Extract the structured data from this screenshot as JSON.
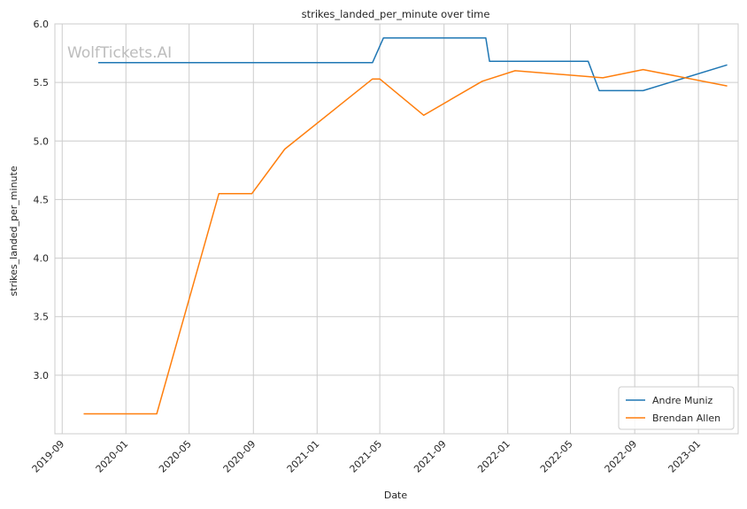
{
  "chart_data": {
    "type": "line",
    "title": "strikes_landed_per_minute over time",
    "xlabel": "Date",
    "ylabel": "strikes_landed_per_minute",
    "watermark": "WolfTickets.AI",
    "x_ticks": [
      "2019-09",
      "2020-01",
      "2020-05",
      "2020-09",
      "2021-01",
      "2021-05",
      "2021-09",
      "2022-01",
      "2022-05",
      "2022-09",
      "2023-01"
    ],
    "y_ticks": [
      "3.0",
      "3.5",
      "4.0",
      "4.5",
      "5.0",
      "5.5",
      "6.0"
    ],
    "ylim": [
      2.5,
      6.0
    ],
    "xlim": [
      "2019-08-18",
      "2023-03-18"
    ],
    "grid": true,
    "legend_position": "bottom-right",
    "colors": {
      "Andre Muniz": "#1f77b4",
      "Brendan Allen": "#ff7f0e",
      "grid": "#cccccc",
      "axes": "#cccccc"
    },
    "series": [
      {
        "name": "Andre Muniz",
        "color": "#1f77b4",
        "points": [
          [
            "2019-11-09",
            5.67
          ],
          [
            "2021-04-17",
            5.67
          ],
          [
            "2021-05-08",
            5.88
          ],
          [
            "2021-11-20",
            5.88
          ],
          [
            "2021-11-27",
            5.68
          ],
          [
            "2022-06-04",
            5.68
          ],
          [
            "2022-06-25",
            5.43
          ],
          [
            "2022-09-17",
            5.43
          ],
          [
            "2023-02-25",
            5.65
          ]
        ]
      },
      {
        "name": "Brendan Allen",
        "color": "#ff7f0e",
        "points": [
          [
            "2019-10-12",
            2.67
          ],
          [
            "2020-02-29",
            2.67
          ],
          [
            "2020-06-27",
            4.55
          ],
          [
            "2020-08-29",
            4.55
          ],
          [
            "2020-10-31",
            4.93
          ],
          [
            "2021-04-17",
            5.53
          ],
          [
            "2021-05-01",
            5.53
          ],
          [
            "2021-07-24",
            5.22
          ],
          [
            "2021-11-13",
            5.51
          ],
          [
            "2022-01-15",
            5.6
          ],
          [
            "2022-07-02",
            5.54
          ],
          [
            "2022-09-17",
            5.61
          ],
          [
            "2023-02-25",
            5.47
          ]
        ]
      }
    ]
  }
}
